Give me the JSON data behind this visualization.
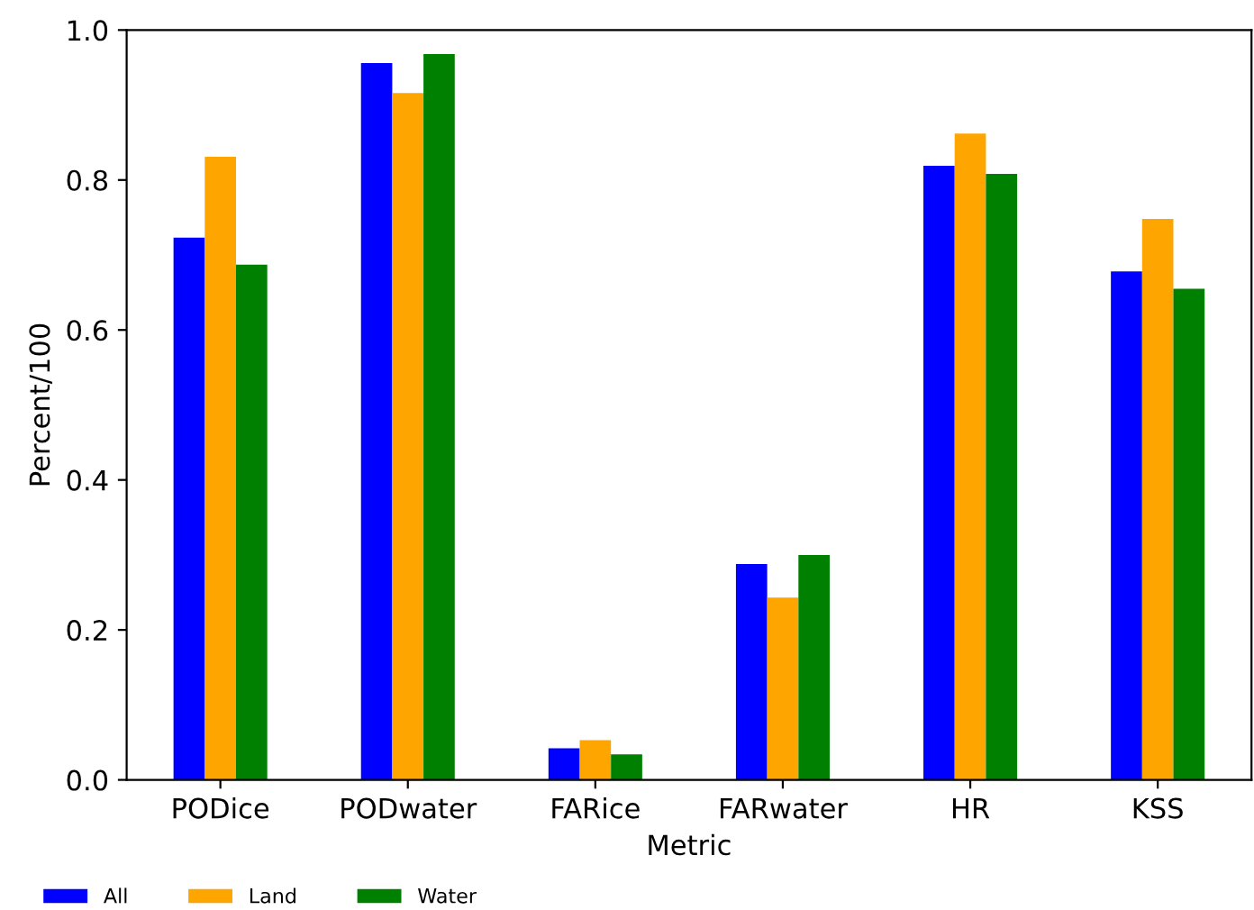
{
  "chart_data": {
    "type": "bar",
    "xlabel": "Metric",
    "ylabel": "Percent/100",
    "categories": [
      "PODice",
      "PODwater",
      "FARice",
      "FARwater",
      "HR",
      "KSS"
    ],
    "series": [
      {
        "name": "All",
        "color": "#0000ff",
        "values": [
          0.723,
          0.956,
          0.042,
          0.288,
          0.819,
          0.678
        ]
      },
      {
        "name": "Land",
        "color": "#ffa500",
        "values": [
          0.831,
          0.916,
          0.053,
          0.243,
          0.862,
          0.748
        ]
      },
      {
        "name": "Water",
        "color": "#008000",
        "values": [
          0.687,
          0.968,
          0.034,
          0.3,
          0.808,
          0.655
        ]
      }
    ],
    "ylim": [
      0,
      1.0
    ],
    "yticks": [
      {
        "value": 0,
        "label": "0.0"
      },
      {
        "value": 0.2,
        "label": "0.2"
      },
      {
        "value": 0.4,
        "label": "0.4"
      },
      {
        "value": 0.6,
        "label": "0.6"
      },
      {
        "value": 0.8,
        "label": "0.8"
      },
      {
        "value": 1.0,
        "label": "1.0"
      }
    ],
    "legend": "bottom left",
    "grid": false
  }
}
